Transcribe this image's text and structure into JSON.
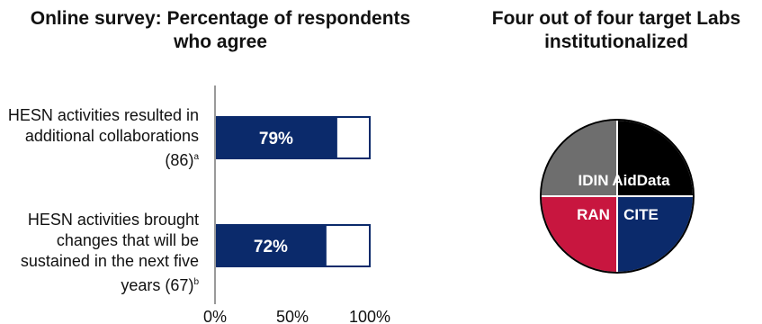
{
  "left_chart": {
    "title": "Online survey: Percentage of respondents who agree",
    "categories": [
      {
        "label": "HESN activities resulted in additional collaborations (86)",
        "footnote": "a",
        "value": 79,
        "value_label": "79%"
      },
      {
        "label": "HESN activities brought changes that will be sustained in the next five years (67)",
        "footnote": "b",
        "value": 72,
        "value_label": "72%"
      }
    ],
    "x_ticks": [
      "0%",
      "50%",
      "100%"
    ]
  },
  "right_chart": {
    "title": "Four out of four target Labs institutionalized",
    "segments": [
      {
        "label": "AidData",
        "color": "#000000"
      },
      {
        "label": "CITE",
        "color": "#0b2a6b"
      },
      {
        "label": "RAN",
        "color": "#c8163f"
      },
      {
        "label": "IDIN",
        "color": "#6e6e6e"
      }
    ]
  },
  "chart_data": [
    {
      "type": "bar",
      "orientation": "horizontal",
      "title": "Online survey: Percentage of respondents who agree",
      "categories": [
        "HESN activities resulted in additional collaborations (86)a",
        "HESN activities brought changes that will be sustained in the next five years (67)b"
      ],
      "values": [
        79,
        72
      ],
      "xlim": [
        0,
        100
      ],
      "x_ticks": [
        "0%",
        "50%",
        "100%"
      ],
      "colors": {
        "fill": "#0b2a6b",
        "remainder": "#ffffff"
      }
    },
    {
      "type": "pie",
      "title": "Four out of four target Labs institutionalized",
      "categories": [
        "AidData",
        "CITE",
        "RAN",
        "IDIN"
      ],
      "values": [
        25,
        25,
        25,
        25
      ],
      "colors": [
        "#000000",
        "#0b2a6b",
        "#c8163f",
        "#6e6e6e"
      ]
    }
  ]
}
